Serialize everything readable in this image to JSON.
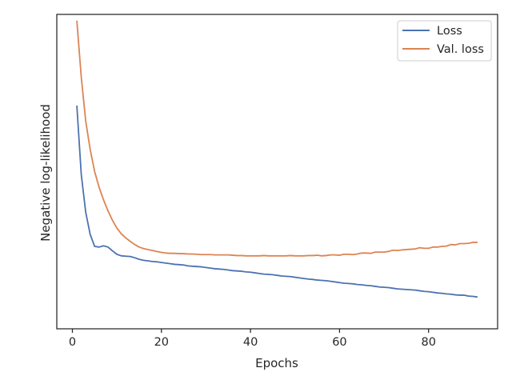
{
  "chart_data": {
    "type": "line",
    "title": "",
    "xlabel": "Epochs",
    "ylabel": "Negative log-likelihood",
    "xlim": [
      -3.5,
      95.5
    ],
    "ylim": [
      0.0,
      1.0
    ],
    "x_ticks": [
      0,
      20,
      40,
      60,
      80
    ],
    "y_ticks": [],
    "y_values_note_free": true,
    "grid": false,
    "legend_placement": "top-right",
    "series": [
      {
        "name": "Loss",
        "color": "#4c72b0",
        "x": [
          1,
          2,
          3,
          4,
          5,
          6,
          7,
          8,
          9,
          10,
          11,
          12,
          13,
          14,
          15,
          16,
          17,
          18,
          19,
          20,
          21,
          22,
          23,
          24,
          25,
          26,
          27,
          28,
          29,
          30,
          31,
          32,
          33,
          34,
          35,
          36,
          37,
          38,
          39,
          40,
          41,
          42,
          43,
          44,
          45,
          46,
          47,
          48,
          49,
          50,
          51,
          52,
          53,
          54,
          55,
          56,
          57,
          58,
          59,
          60,
          61,
          62,
          63,
          64,
          65,
          66,
          67,
          68,
          69,
          70,
          71,
          72,
          73,
          74,
          75,
          76,
          77,
          78,
          79,
          80,
          81,
          82,
          83,
          84,
          85,
          86,
          87,
          88,
          89,
          90,
          91
        ],
        "values": [
          0.71,
          0.49,
          0.37,
          0.3,
          0.262,
          0.26,
          0.264,
          0.26,
          0.248,
          0.237,
          0.232,
          0.231,
          0.23,
          0.226,
          0.221,
          0.218,
          0.216,
          0.214,
          0.213,
          0.211,
          0.209,
          0.207,
          0.205,
          0.204,
          0.203,
          0.2,
          0.199,
          0.198,
          0.197,
          0.195,
          0.193,
          0.191,
          0.19,
          0.189,
          0.187,
          0.185,
          0.184,
          0.183,
          0.181,
          0.18,
          0.178,
          0.176,
          0.174,
          0.173,
          0.172,
          0.17,
          0.168,
          0.167,
          0.166,
          0.164,
          0.162,
          0.16,
          0.158,
          0.157,
          0.155,
          0.154,
          0.153,
          0.151,
          0.149,
          0.147,
          0.145,
          0.144,
          0.143,
          0.141,
          0.14,
          0.138,
          0.137,
          0.135,
          0.133,
          0.132,
          0.131,
          0.129,
          0.127,
          0.126,
          0.125,
          0.124,
          0.123,
          0.121,
          0.119,
          0.118,
          0.116,
          0.114,
          0.113,
          0.111,
          0.11,
          0.108,
          0.107,
          0.107,
          0.104,
          0.103,
          0.101
        ]
      },
      {
        "name": "Val. loss",
        "color": "#dd8452",
        "x": [
          1,
          2,
          3,
          4,
          5,
          6,
          7,
          8,
          9,
          10,
          11,
          12,
          13,
          14,
          15,
          16,
          17,
          18,
          19,
          20,
          21,
          22,
          23,
          24,
          25,
          26,
          27,
          28,
          29,
          30,
          31,
          32,
          33,
          34,
          35,
          36,
          37,
          38,
          39,
          40,
          41,
          42,
          43,
          44,
          45,
          46,
          47,
          48,
          49,
          50,
          51,
          52,
          53,
          54,
          55,
          56,
          57,
          58,
          59,
          60,
          61,
          62,
          63,
          64,
          65,
          66,
          67,
          68,
          69,
          70,
          71,
          72,
          73,
          74,
          75,
          76,
          77,
          78,
          79,
          80,
          81,
          82,
          83,
          84,
          85,
          86,
          87,
          88,
          89,
          90,
          91
        ],
        "values": [
          0.98,
          0.8,
          0.66,
          0.57,
          0.5,
          0.45,
          0.41,
          0.375,
          0.345,
          0.32,
          0.302,
          0.289,
          0.278,
          0.268,
          0.26,
          0.255,
          0.252,
          0.249,
          0.246,
          0.243,
          0.241,
          0.24,
          0.24,
          0.239,
          0.239,
          0.238,
          0.238,
          0.237,
          0.236,
          0.236,
          0.236,
          0.235,
          0.235,
          0.235,
          0.235,
          0.234,
          0.233,
          0.233,
          0.232,
          0.232,
          0.232,
          0.232,
          0.233,
          0.232,
          0.232,
          0.232,
          0.232,
          0.232,
          0.233,
          0.232,
          0.232,
          0.232,
          0.233,
          0.233,
          0.234,
          0.232,
          0.233,
          0.235,
          0.235,
          0.234,
          0.237,
          0.237,
          0.236,
          0.238,
          0.241,
          0.241,
          0.24,
          0.244,
          0.244,
          0.244,
          0.246,
          0.25,
          0.249,
          0.251,
          0.252,
          0.253,
          0.254,
          0.258,
          0.256,
          0.256,
          0.26,
          0.26,
          0.262,
          0.263,
          0.268,
          0.267,
          0.271,
          0.271,
          0.272,
          0.275,
          0.275
        ]
      }
    ]
  }
}
